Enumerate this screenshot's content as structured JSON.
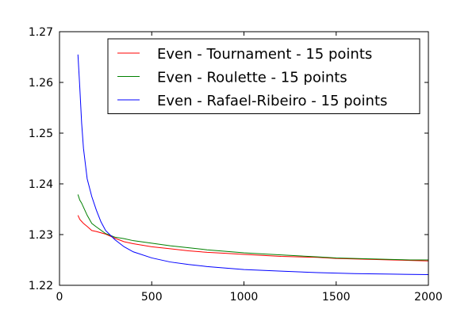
{
  "chart_data": {
    "type": "line",
    "title": "",
    "xlabel": "",
    "ylabel": "",
    "xlim": [
      0,
      2000
    ],
    "ylim": [
      1.22,
      1.27
    ],
    "xticks": [
      0,
      500,
      1000,
      1500,
      2000
    ],
    "xtick_labels": [
      "0",
      "500",
      "1000",
      "1500",
      "2000"
    ],
    "yticks": [
      1.22,
      1.23,
      1.24,
      1.25,
      1.26,
      1.27
    ],
    "ytick_labels": [
      "1.22",
      "1.23",
      "1.24",
      "1.25",
      "1.26",
      "1.27"
    ],
    "grid": false,
    "legend_position": "top-right",
    "series": [
      {
        "name": "Even - Tournament - 15 points",
        "color": "#ff0000",
        "x": [
          100,
          110,
          120,
          130,
          150,
          175,
          200,
          250,
          300,
          350,
          400,
          500,
          600,
          700,
          800,
          900,
          1000,
          1100,
          1200,
          1300,
          1400,
          1500,
          1600,
          1700,
          1800,
          1900,
          2000
        ],
        "y": [
          1.2338,
          1.233,
          1.2326,
          1.2322,
          1.2316,
          1.2308,
          1.2306,
          1.2301,
          1.2293,
          1.2286,
          1.2282,
          1.2276,
          1.2272,
          1.2268,
          1.2265,
          1.2263,
          1.2261,
          1.2259,
          1.2257,
          1.2256,
          1.2255,
          1.2253,
          1.2252,
          1.2251,
          1.225,
          1.2249,
          1.2248
        ]
      },
      {
        "name": "Even - Roulette - 15 points",
        "color": "#008000",
        "x": [
          100,
          110,
          120,
          130,
          150,
          175,
          200,
          250,
          300,
          350,
          400,
          500,
          600,
          700,
          800,
          900,
          1000,
          1100,
          1200,
          1300,
          1400,
          1500,
          1600,
          1700,
          1800,
          1900,
          2000
        ],
        "y": [
          1.2379,
          1.2368,
          1.2362,
          1.2354,
          1.2338,
          1.2322,
          1.2315,
          1.2302,
          1.2295,
          1.2292,
          1.2288,
          1.2283,
          1.2278,
          1.2274,
          1.227,
          1.2267,
          1.2264,
          1.2262,
          1.226,
          1.2258,
          1.2256,
          1.2254,
          1.2253,
          1.2252,
          1.2251,
          1.225,
          1.225
        ]
      },
      {
        "name": "Even - Rafael-Ribeiro - 15 points",
        "color": "#0000ff",
        "x": [
          100,
          110,
          120,
          130,
          140,
          150,
          175,
          200,
          225,
          250,
          300,
          350,
          400,
          500,
          600,
          700,
          800,
          900,
          1000,
          1200,
          1400,
          1600,
          1800,
          2000
        ],
        "y": [
          1.2655,
          1.259,
          1.252,
          1.247,
          1.244,
          1.241,
          1.2375,
          1.2348,
          1.2325,
          1.2308,
          1.229,
          1.2276,
          1.2266,
          1.2254,
          1.2246,
          1.2241,
          1.2237,
          1.2234,
          1.2231,
          1.2228,
          1.2225,
          1.2223,
          1.2222,
          1.2221
        ]
      }
    ]
  }
}
